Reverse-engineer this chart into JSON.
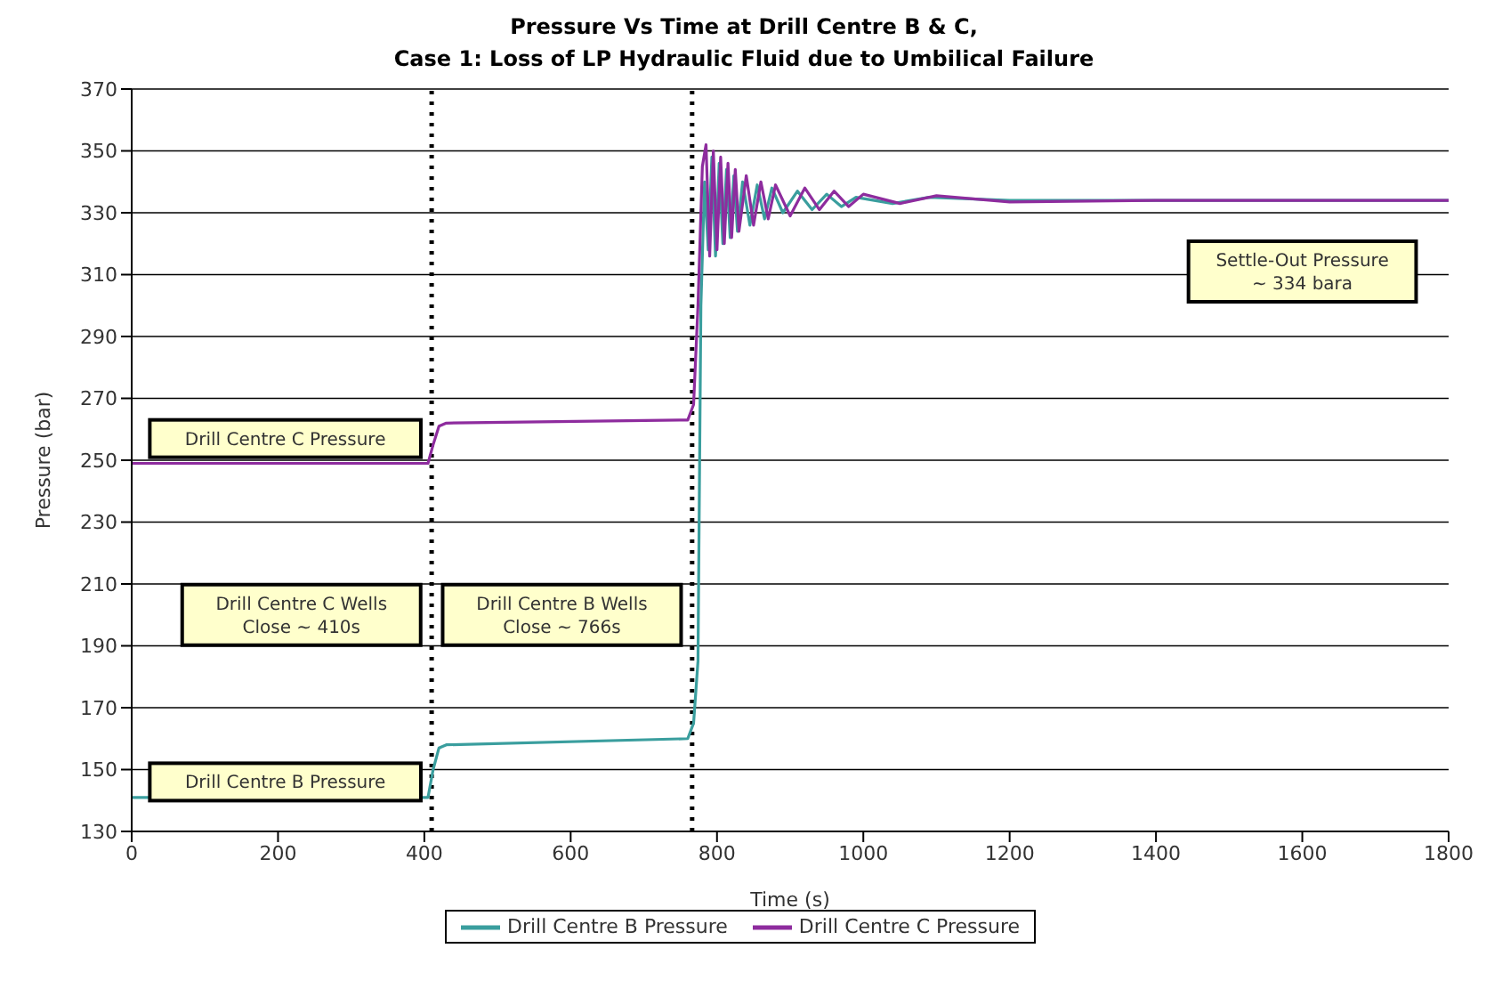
{
  "chart_data": {
    "type": "line",
    "title": "Pressure Vs Time at Drill Centre B & C,",
    "subtitle": "Case 1: Loss of LP Hydraulic Fluid due to Umbilical Failure",
    "xlabel": "Time (s)",
    "ylabel": "Pressure (bar)",
    "xlim": [
      0,
      1800
    ],
    "xticks": [
      0,
      200,
      400,
      600,
      800,
      1000,
      1200,
      1400,
      1600,
      1800
    ],
    "ylim": [
      130,
      370
    ],
    "yticks": [
      130,
      150,
      170,
      190,
      210,
      230,
      250,
      270,
      290,
      310,
      330,
      350,
      370
    ],
    "grid": "y",
    "legend": "bottom",
    "marker": "none",
    "line_style": "solid",
    "series": [
      {
        "name": "Drill Centre B Pressure",
        "color": "#3a9e9e",
        "x": [
          0,
          405,
          412,
          420,
          430,
          760,
          768,
          774,
          778,
          783,
          788,
          793,
          798,
          803,
          808,
          813,
          818,
          823,
          828,
          835,
          845,
          855,
          865,
          875,
          890,
          910,
          930,
          950,
          970,
          990,
          1040,
          1090,
          1200,
          1400,
          1600,
          1800
        ],
        "values": [
          141,
          141,
          150,
          157,
          158,
          160,
          165,
          185,
          300,
          340,
          318,
          348,
          316,
          346,
          320,
          344,
          322,
          342,
          324,
          340,
          326,
          339,
          328,
          338,
          330,
          337,
          331,
          336,
          332,
          335,
          333,
          335,
          334,
          334,
          334,
          334
        ]
      },
      {
        "name": "Drill Centre C Pressure",
        "color": "#8e2c9e",
        "x": [
          0,
          405,
          412,
          420,
          430,
          760,
          768,
          774,
          780,
          785,
          790,
          795,
          800,
          805,
          810,
          815,
          820,
          825,
          830,
          840,
          850,
          860,
          870,
          880,
          900,
          920,
          940,
          960,
          980,
          1000,
          1050,
          1100,
          1200,
          1400,
          1600,
          1800
        ],
        "values": [
          249,
          249,
          255,
          261,
          262,
          263,
          268,
          300,
          345,
          352,
          316,
          350,
          318,
          348,
          320,
          346,
          322,
          344,
          324,
          342,
          326,
          340,
          328,
          339,
          329,
          338,
          331,
          337,
          332,
          336,
          333,
          335.5,
          333.5,
          334,
          334,
          334
        ]
      }
    ],
    "ref_lines": [
      {
        "axis": "x",
        "value": 410,
        "line_style": "dotted",
        "color": "#000000"
      },
      {
        "axis": "x",
        "value": 766,
        "line_style": "dotted",
        "color": "#000000"
      }
    ],
    "annotations": [
      "Drill Centre C Pressure",
      "Drill Centre B Pressure",
      "Drill Centre C Wells\nClose ~ 410s",
      "Drill Centre B Wells\nClose ~ 766s",
      "Settle-Out Pressure\n~ 334 bara"
    ]
  }
}
